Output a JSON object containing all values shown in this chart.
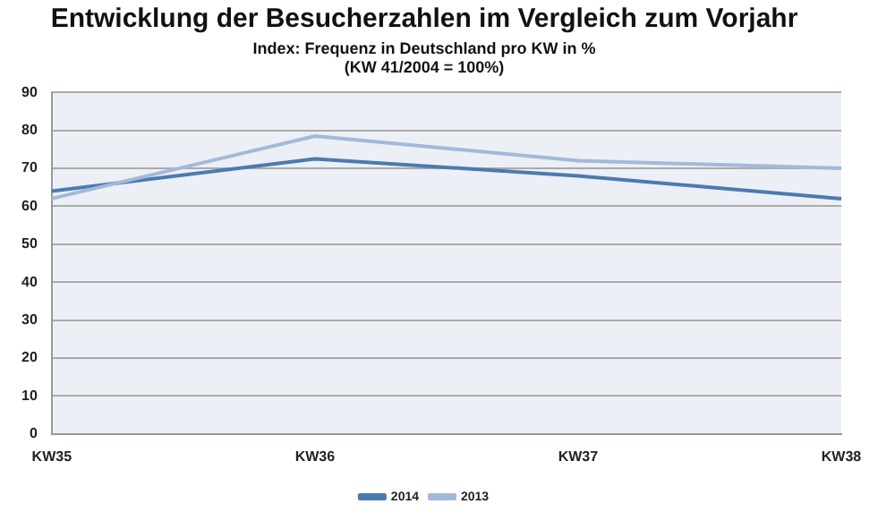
{
  "chart_data": {
    "type": "line",
    "title": "Entwicklung der Besucherzahlen im Vergleich zum Vorjahr",
    "subtitle": "Index: Frequenz in Deutschland pro KW in %\n(KW 41/2004 = 100%)",
    "categories": [
      "KW35",
      "KW36",
      "KW37",
      "KW38"
    ],
    "series": [
      {
        "name": "2014",
        "color": "#4a7ab0",
        "values": [
          64,
          72.5,
          68,
          62
        ]
      },
      {
        "name": "2013",
        "color": "#a3b9d9",
        "values": [
          62,
          78.5,
          72,
          70
        ]
      }
    ],
    "ylim": [
      0,
      90
    ],
    "yticks": [
      0,
      10,
      20,
      30,
      40,
      50,
      60,
      70,
      80,
      90
    ],
    "grid": "y",
    "legend": "bottom",
    "marker": "none",
    "line_style": "solid"
  }
}
